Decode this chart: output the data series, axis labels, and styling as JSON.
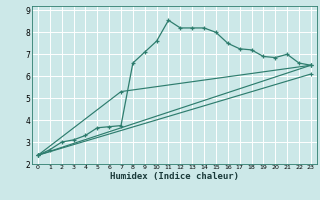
{
  "title": "",
  "xlabel": "Humidex (Indice chaleur)",
  "bg_color": "#cce8e8",
  "grid_color": "#ffffff",
  "line_color": "#2e7d6e",
  "xlim": [
    -0.5,
    23.5
  ],
  "ylim": [
    2,
    9.2
  ],
  "xticks": [
    0,
    1,
    2,
    3,
    4,
    5,
    6,
    7,
    8,
    9,
    10,
    11,
    12,
    13,
    14,
    15,
    16,
    17,
    18,
    19,
    20,
    21,
    22,
    23
  ],
  "yticks": [
    2,
    3,
    4,
    5,
    6,
    7,
    8,
    9
  ],
  "series": [
    {
      "x": [
        0,
        1,
        2,
        3,
        4,
        5,
        6,
        7,
        8,
        9,
        10,
        11,
        12,
        13,
        14,
        15,
        16,
        17,
        18,
        19,
        20,
        21,
        22,
        23
      ],
      "y": [
        2.4,
        2.65,
        3.0,
        3.1,
        3.3,
        3.65,
        3.7,
        3.75,
        6.6,
        7.1,
        7.6,
        8.55,
        8.2,
        8.2,
        8.2,
        8.0,
        7.5,
        7.25,
        7.2,
        6.9,
        6.85,
        7.0,
        6.6,
        6.5
      ]
    },
    {
      "x": [
        0,
        23
      ],
      "y": [
        2.4,
        6.5
      ]
    },
    {
      "x": [
        0,
        23
      ],
      "y": [
        2.4,
        6.1
      ]
    },
    {
      "x": [
        0,
        7,
        23
      ],
      "y": [
        2.4,
        5.3,
        6.5
      ]
    }
  ]
}
